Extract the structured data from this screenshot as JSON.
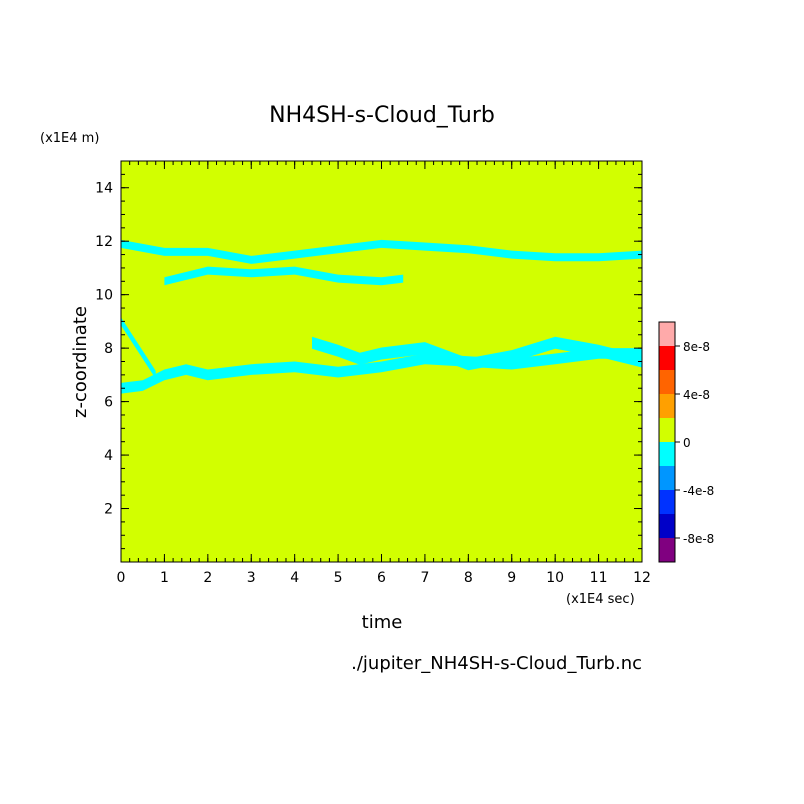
{
  "chart_data": {
    "type": "heatmap",
    "title": "NH4SH-s-Cloud_Turb",
    "xlabel": "time",
    "ylabel": "z-coordinate",
    "x_unit": "(x1E4 sec)",
    "y_unit": "(x1E4 m)",
    "source_file": "./jupiter_NH4SH-s-Cloud_Turb.nc",
    "xlim": [
      0,
      12
    ],
    "ylim": [
      0,
      15
    ],
    "x_ticks": [
      "0",
      "1",
      "2",
      "3",
      "4",
      "5",
      "6",
      "7",
      "8",
      "9",
      "10",
      "11",
      "12"
    ],
    "y_ticks": [
      "2",
      "4",
      "6",
      "8",
      "10",
      "12",
      "14"
    ],
    "background_level": "0",
    "background_color": "#d2ff00",
    "anomaly_color": "#00ffff",
    "colorbar": {
      "colors": [
        "#800080",
        "#0000c8",
        "#0032ff",
        "#0096ff",
        "#00ffff",
        "#d2ff00",
        "#ffa000",
        "#ff6400",
        "#ff0000",
        "#ffaaaa"
      ],
      "labels": [
        "8e-8",
        "4e-8",
        "0",
        "-4e-8",
        "-8e-8"
      ]
    },
    "bands": [
      {
        "name": "upper-band",
        "x": [
          0,
          1,
          2,
          3,
          4,
          5,
          6,
          7,
          8,
          9,
          10,
          11,
          12
        ],
        "z": [
          11.9,
          11.6,
          11.6,
          11.3,
          11.5,
          11.7,
          11.9,
          11.8,
          11.7,
          11.5,
          11.4,
          11.4,
          11.5
        ],
        "thickness": 0.3
      },
      {
        "name": "upper-mid-band",
        "x": [
          1,
          2,
          3,
          4,
          5,
          6,
          6.5
        ],
        "z": [
          10.5,
          10.9,
          10.8,
          10.9,
          10.6,
          10.5,
          10.6
        ],
        "thickness": 0.3
      },
      {
        "name": "mid-band",
        "x": [
          4.4,
          5,
          5.5,
          6,
          7,
          8,
          9,
          10,
          11,
          12
        ],
        "z": [
          8.2,
          7.9,
          7.6,
          7.8,
          8.0,
          7.4,
          7.7,
          8.2,
          7.9,
          7.5
        ],
        "thickness": 0.45
      },
      {
        "name": "lower-band",
        "x": [
          0,
          0.5,
          1,
          1.5,
          2,
          3,
          4,
          5,
          6,
          7,
          8,
          9,
          10,
          11,
          12
        ],
        "z": [
          6.5,
          6.6,
          7.0,
          7.2,
          7.0,
          7.2,
          7.3,
          7.1,
          7.3,
          7.6,
          7.5,
          7.4,
          7.6,
          7.8,
          7.8
        ],
        "thickness": 0.4
      },
      {
        "name": "left-column",
        "x": [
          0,
          0.2,
          0.4,
          0.6,
          0.8
        ],
        "z": [
          9.0,
          8.5,
          8.0,
          7.5,
          7.0
        ],
        "thickness": 0.3
      }
    ]
  }
}
